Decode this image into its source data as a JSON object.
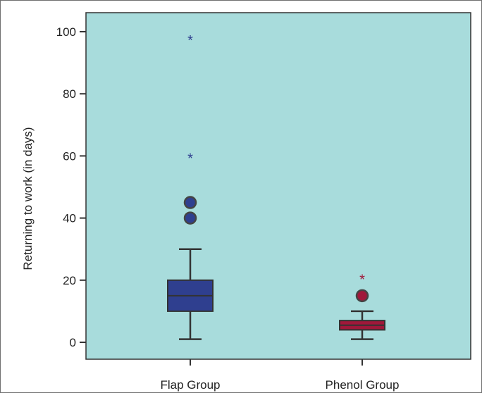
{
  "chart_data": {
    "type": "boxplot",
    "ylabel": "Returning to work (in days)",
    "xlabel": "",
    "ylim": [
      -5,
      105
    ],
    "yticks": [
      0,
      20,
      40,
      60,
      80,
      100
    ],
    "grid": false,
    "background_color": "#a8dcdc",
    "categories": [
      "Flap Group",
      "Phenol Group"
    ],
    "boxes": [
      {
        "category": "Flap Group",
        "color": "#2f3f8f",
        "whisker_low": 1,
        "q1": 10,
        "median": 15,
        "q3": 20,
        "whisker_high": 30,
        "outliers": [
          40,
          45
        ],
        "extremes": [
          60,
          98
        ]
      },
      {
        "category": "Phenol Group",
        "color": "#a0183a",
        "whisker_low": 1,
        "q1": 4,
        "median": 5.5,
        "q3": 7,
        "whisker_high": 10,
        "outliers": [
          15
        ],
        "extremes": [
          21
        ]
      }
    ]
  }
}
